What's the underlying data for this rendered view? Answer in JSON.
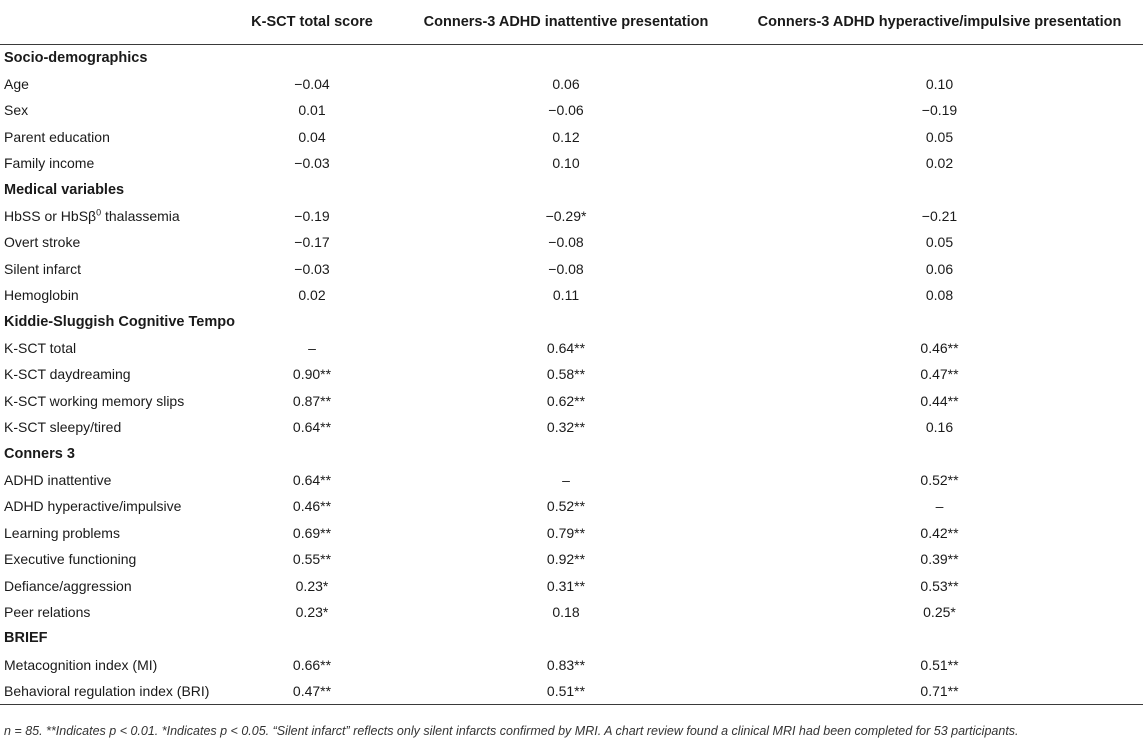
{
  "table": {
    "headers": [
      "",
      "K-SCT total score",
      "Conners-3 ADHD inattentive presentation",
      "Conners-3 ADHD hyperactive/impulsive presentation"
    ],
    "sections": [
      {
        "title": "Socio-demographics",
        "rows": [
          {
            "label": "Age",
            "values": [
              "−0.04",
              "0.06",
              "0.10"
            ]
          },
          {
            "label": "Sex",
            "values": [
              "0.01",
              "−0.06",
              "−0.19"
            ]
          },
          {
            "label": "Parent education",
            "values": [
              "0.04",
              "0.12",
              "0.05"
            ]
          },
          {
            "label": "Family income",
            "values": [
              "−0.03",
              "0.10",
              "0.02"
            ]
          }
        ]
      },
      {
        "title": "Medical variables",
        "rows": [
          {
            "label": "HbSS or HbSβ",
            "label_sup": "0",
            "label_suffix": " thalassemia",
            "values": [
              "−0.19",
              "−0.29*",
              "−0.21"
            ]
          },
          {
            "label": "Overt stroke",
            "values": [
              "−0.17",
              "−0.08",
              "0.05"
            ]
          },
          {
            "label": "Silent infarct",
            "values": [
              "−0.03",
              "−0.08",
              "0.06"
            ]
          },
          {
            "label": "Hemoglobin",
            "values": [
              "0.02",
              "0.11",
              "0.08"
            ]
          }
        ]
      },
      {
        "title": "Kiddie-Sluggish Cognitive Tempo",
        "rows": [
          {
            "label": "K-SCT total",
            "values": [
              "–",
              "0.64**",
              "0.46**"
            ]
          },
          {
            "label": "K-SCT daydreaming",
            "values": [
              "0.90**",
              "0.58**",
              "0.47**"
            ]
          },
          {
            "label": "K-SCT working memory slips",
            "values": [
              "0.87**",
              "0.62**",
              "0.44**"
            ]
          },
          {
            "label": "K-SCT sleepy/tired",
            "values": [
              "0.64**",
              "0.32**",
              "0.16"
            ]
          }
        ]
      },
      {
        "title": "Conners 3",
        "rows": [
          {
            "label": "ADHD inattentive",
            "values": [
              "0.64**",
              "–",
              "0.52**"
            ]
          },
          {
            "label": "ADHD hyperactive/impulsive",
            "values": [
              "0.46**",
              "0.52**",
              "–"
            ]
          },
          {
            "label": "Learning problems",
            "values": [
              "0.69**",
              "0.79**",
              "0.42**"
            ]
          },
          {
            "label": "Executive functioning",
            "values": [
              "0.55**",
              "0.92**",
              "0.39**"
            ]
          },
          {
            "label": "Defiance/aggression",
            "values": [
              "0.23*",
              "0.31**",
              "0.53**"
            ]
          },
          {
            "label": "Peer relations",
            "values": [
              "0.23*",
              "0.18",
              "0.25*"
            ]
          }
        ]
      },
      {
        "title": "BRIEF",
        "rows": [
          {
            "label": "Metacognition index (MI)",
            "values": [
              "0.66**",
              "0.83**",
              "0.51**"
            ]
          },
          {
            "label": "Behavioral regulation index (BRI)",
            "values": [
              "0.47**",
              "0.51**",
              "0.71**"
            ]
          }
        ]
      }
    ]
  },
  "footnote": "n = 85. **Indicates p < 0.01. *Indicates p < 0.05. “Silent infarct” reflects only silent infarcts confirmed by MRI. A chart review found a clinical MRI had been completed for 53 participants."
}
